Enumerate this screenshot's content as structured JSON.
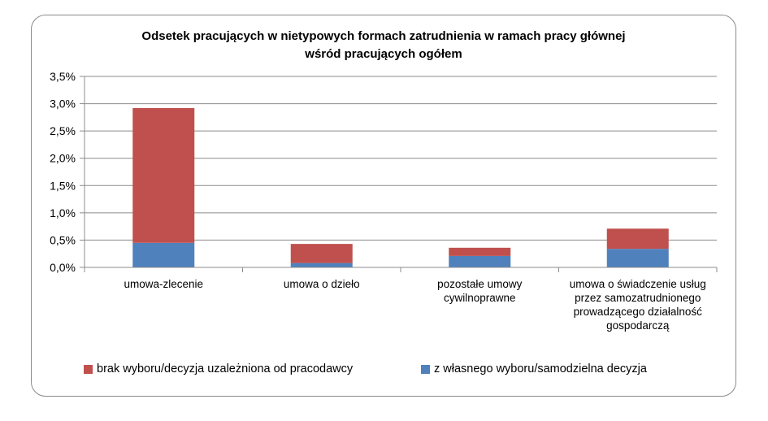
{
  "chart_data": {
    "type": "bar",
    "stacked": true,
    "title_lines": [
      "Odsetek pracujących  w nietypowych formach zatrudnienia  w ramach  pracy głównej",
      "wśród pracujących  ogółem"
    ],
    "categories": [
      [
        "umowa-zlecenie"
      ],
      [
        "umowa o dzieło"
      ],
      [
        "pozostałe umowy",
        "cywilnoprawne"
      ],
      [
        "umowa o świadczenie usług",
        "przez samozatrudnionego",
        "prowadzącego działalność",
        "gospodarczą"
      ]
    ],
    "series": [
      {
        "name": "z własnego wyboru/samodzielna decyzja",
        "color": "#4f81bd",
        "values": [
          0.45,
          0.08,
          0.21,
          0.34
        ]
      },
      {
        "name": "brak wyboru/decyzja  uzależniona od pracodawcy",
        "color": "#c0504d",
        "values": [
          2.47,
          0.35,
          0.15,
          0.37
        ]
      }
    ],
    "yticks": [
      "0,0%",
      "0,5%",
      "1,0%",
      "1,5%",
      "2,0%",
      "2,5%",
      "3,0%",
      "3,5%"
    ],
    "ylim": [
      0,
      3.5
    ],
    "grid": true,
    "legend_position": "bottom"
  }
}
